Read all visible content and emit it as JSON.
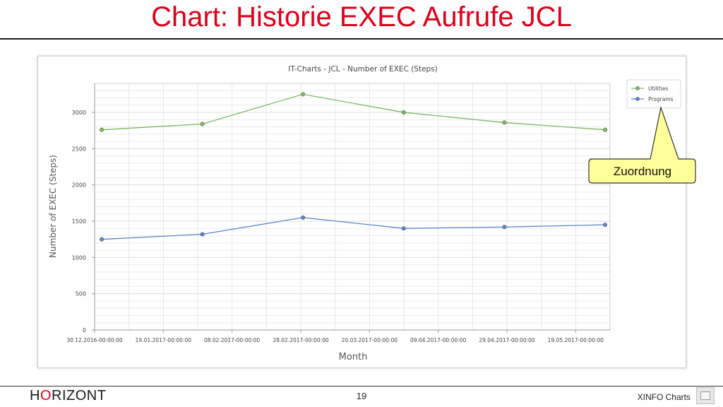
{
  "slide": {
    "title": "Chart: Historie EXEC Aufrufe JCL",
    "logo_prefix": "H",
    "logo_o": "O",
    "logo_suffix": "RIZONT",
    "page_number": "19",
    "footer_label": "XINFO Charts"
  },
  "callout": {
    "text": "Zuordnung"
  },
  "chart_data": {
    "type": "line",
    "title": "IT-Charts - JCL - Number of EXEC (Steps)",
    "xlabel": "Month",
    "ylabel": "Number of EXEC (Steps)",
    "ylim": [
      0,
      3400
    ],
    "y_ticks": [
      0,
      500,
      1000,
      1500,
      2000,
      2500,
      3000
    ],
    "x_tick_labels": [
      "30.12.2016-00:00:00",
      "19.01.2017-00:00:00",
      "08.02.2017-00:00:00",
      "28.02.2017-00:00:00",
      "20.03.2017-00:00:00",
      "09.04.2017-00:00:00",
      "29.04.2017-00:00:00",
      "19.05.2017-00:00:00"
    ],
    "x_points": [
      "30.12.2016",
      "31.01.2017",
      "28.02.2017",
      "31.03.2017",
      "30.04.2017",
      "31.05.2017"
    ],
    "series": [
      {
        "name": "Utilities",
        "color": "#7cb960",
        "values": [
          2760,
          2840,
          3250,
          3000,
          2860,
          2760
        ]
      },
      {
        "name": "Programs",
        "color": "#5a84cc",
        "values": [
          1250,
          1320,
          1550,
          1400,
          1420,
          1450
        ]
      }
    ],
    "grid": true,
    "legend": "top-right"
  }
}
